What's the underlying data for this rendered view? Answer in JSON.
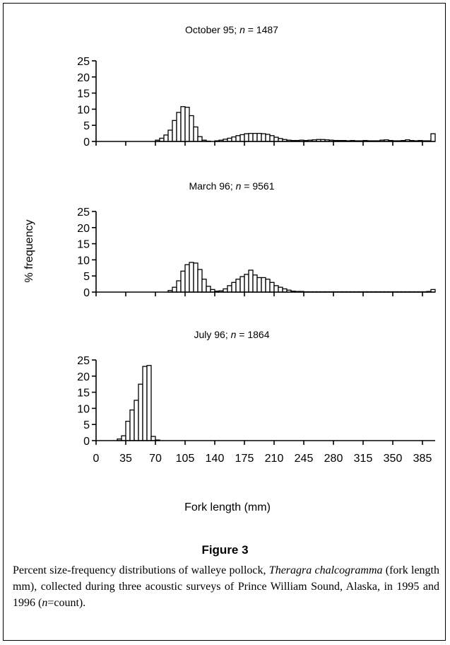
{
  "chart_data": [
    {
      "type": "bar",
      "title_prefix": "October 95; ",
      "n_label": "n",
      "n_value": " = 1487",
      "ylim": [
        0,
        25
      ],
      "yticks": [
        0,
        5,
        10,
        15,
        20,
        25
      ],
      "xlim": [
        0,
        400
      ],
      "bin_width": 5,
      "bins_start": [
        70,
        75,
        80,
        85,
        90,
        95,
        100,
        105,
        110,
        115,
        120,
        125,
        130,
        135,
        140,
        145,
        150,
        155,
        160,
        165,
        170,
        175,
        180,
        185,
        190,
        195,
        200,
        205,
        210,
        215,
        220,
        225,
        230,
        235,
        240,
        245,
        250,
        255,
        260,
        265,
        270,
        275,
        280,
        285,
        290,
        295,
        300,
        305,
        310,
        315,
        320,
        325,
        330,
        335,
        340,
        345,
        350,
        355,
        360,
        365,
        370,
        375,
        380,
        385,
        390,
        395
      ],
      "values": [
        0.4,
        1.0,
        2.0,
        3.5,
        6.5,
        9.0,
        10.8,
        10.6,
        8.0,
        4.5,
        1.5,
        0.4,
        0.1,
        0.0,
        0.2,
        0.4,
        0.7,
        1.0,
        1.4,
        1.8,
        2.1,
        2.4,
        2.5,
        2.5,
        2.5,
        2.4,
        2.2,
        1.8,
        1.3,
        0.9,
        0.6,
        0.4,
        0.3,
        0.3,
        0.4,
        0.3,
        0.4,
        0.5,
        0.6,
        0.6,
        0.5,
        0.4,
        0.3,
        0.3,
        0.3,
        0.2,
        0.3,
        0.2,
        0.2,
        0.3,
        0.2,
        0.2,
        0.2,
        0.4,
        0.5,
        0.3,
        0.2,
        0.2,
        0.3,
        0.5,
        0.3,
        0.2,
        0.3,
        0.2,
        0.2,
        2.4
      ]
    },
    {
      "type": "bar",
      "title_prefix": "March 96; ",
      "n_label": "n",
      "n_value": " = 9561",
      "ylim": [
        0,
        25
      ],
      "yticks": [
        0,
        5,
        10,
        15,
        20,
        25
      ],
      "xlim": [
        0,
        400
      ],
      "bin_width": 5,
      "bins_start": [
        85,
        90,
        95,
        100,
        105,
        110,
        115,
        120,
        125,
        130,
        135,
        140,
        145,
        150,
        155,
        160,
        165,
        170,
        175,
        180,
        185,
        190,
        195,
        200,
        205,
        210,
        215,
        220,
        225,
        230,
        235,
        240,
        245,
        250,
        255,
        260,
        265,
        270,
        275,
        280,
        285,
        290,
        295,
        300,
        305,
        310,
        315,
        320,
        325,
        330,
        335,
        340,
        345,
        350,
        355,
        360,
        365,
        370,
        375,
        380,
        385,
        390,
        395
      ],
      "values": [
        0.5,
        1.5,
        3.5,
        6.5,
        8.5,
        9.2,
        9.0,
        7.0,
        4.0,
        1.8,
        0.8,
        0.3,
        0.4,
        1.0,
        2.0,
        3.0,
        4.0,
        4.8,
        5.5,
        6.8,
        5.3,
        4.5,
        4.5,
        4.0,
        3.0,
        2.0,
        1.5,
        1.0,
        0.6,
        0.3,
        0.2,
        0.2,
        0.1,
        0.1,
        0.1,
        0.1,
        0.1,
        0.1,
        0.1,
        0.1,
        0.1,
        0.1,
        0.1,
        0.1,
        0.1,
        0.1,
        0.1,
        0.1,
        0.1,
        0.1,
        0.1,
        0.1,
        0.1,
        0.1,
        0.1,
        0.1,
        0.1,
        0.1,
        0.1,
        0.1,
        0.1,
        0.2,
        0.8
      ]
    },
    {
      "type": "bar",
      "title_prefix": "July 96; ",
      "n_label": "n",
      "n_value": " = 1864",
      "ylim": [
        0,
        25
      ],
      "yticks": [
        0,
        5,
        10,
        15,
        20,
        25
      ],
      "xlim": [
        0,
        400
      ],
      "bin_width": 5,
      "bins_start": [
        25,
        30,
        35,
        40,
        45,
        50,
        55,
        60,
        65,
        70
      ],
      "values": [
        0.5,
        1.5,
        6.0,
        9.5,
        12.5,
        17.5,
        23.0,
        23.3,
        1.3,
        0.2
      ],
      "xticks": [
        0,
        35,
        70,
        105,
        140,
        175,
        210,
        245,
        280,
        315,
        350,
        385
      ],
      "xticklabels": [
        "0",
        "35",
        "70",
        "105",
        "140",
        "175",
        "210",
        "245",
        "280",
        "315",
        "350",
        "385"
      ]
    }
  ],
  "ylabel": "% frequency",
  "xlabel": "Fork length (mm)",
  "figure_label": "Figure 3",
  "caption": {
    "part1": "Percent size-frequency distributions of walleye pollock, ",
    "species": "Theragra chalcogramma",
    "part2": " (fork length mm), collected during three acoustic surveys of Prince William Sound, Alaska, in 1995 and 1996 (",
    "n_label": "n",
    "part3": "=count)."
  }
}
